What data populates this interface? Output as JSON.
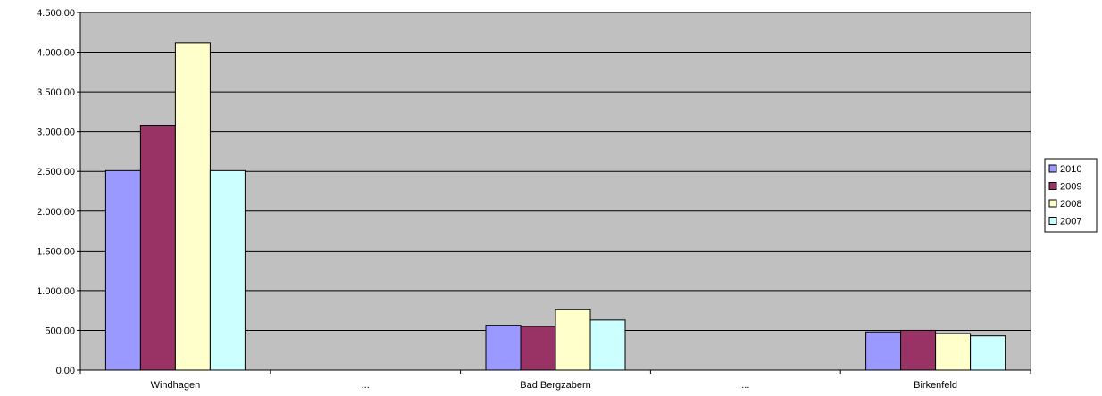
{
  "chart_data": {
    "type": "bar",
    "categories": [
      "Windhagen",
      "...",
      "Bad Bergzabern",
      "...",
      "Birkenfeld"
    ],
    "series": [
      {
        "name": "2010",
        "color": "#9999ff",
        "values": [
          2510,
          null,
          565,
          null,
          480
        ]
      },
      {
        "name": "2009",
        "color": "#993366",
        "values": [
          3080,
          null,
          550,
          null,
          500
        ]
      },
      {
        "name": "2008",
        "color": "#ffffcc",
        "values": [
          4120,
          null,
          760,
          null,
          460
        ]
      },
      {
        "name": "2007",
        "color": "#ccffff",
        "values": [
          2510,
          null,
          630,
          null,
          430
        ]
      }
    ],
    "y_ticks": [
      "0,00",
      "500,00",
      "1.000,00",
      "1.500,00",
      "2.000,00",
      "2.500,00",
      "3.000,00",
      "3.500,00",
      "4.000,00",
      "4.500,00"
    ],
    "ylim": [
      0,
      4500
    ],
    "y_step": 500,
    "title": "",
    "xlabel": "",
    "ylabel": "",
    "grid": true,
    "legend_position": "right",
    "plot_background": "#c0c0c0",
    "bar_outline": "#000000"
  }
}
